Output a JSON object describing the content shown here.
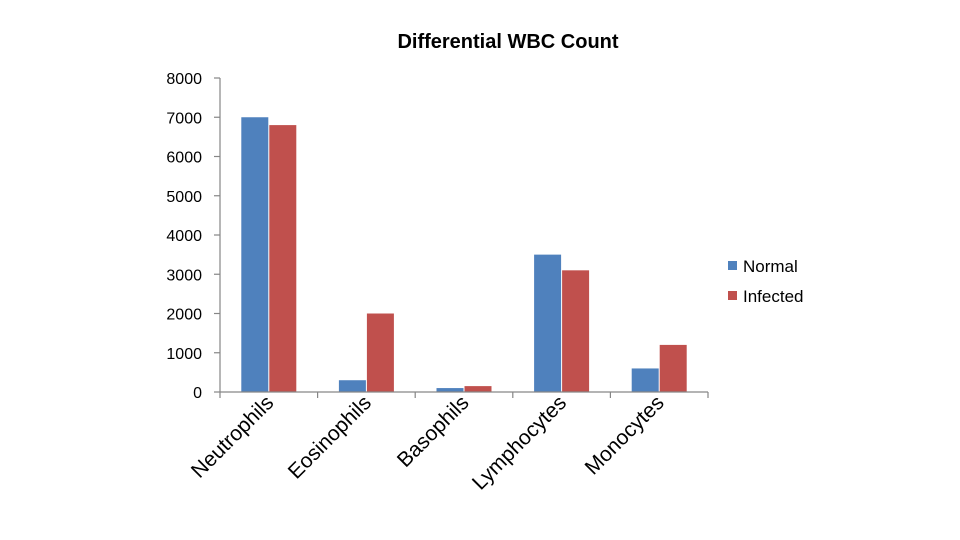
{
  "chart_data": {
    "type": "bar",
    "title": "Differential WBC Count",
    "xlabel": "",
    "ylabel": "",
    "categories": [
      "Neutrophils",
      "Eosinophils",
      "Basophils",
      "Lymphocytes",
      "Monocytes"
    ],
    "series": [
      {
        "name": "Normal",
        "color": "#4F81BD",
        "values": [
          7000,
          300,
          100,
          3500,
          600
        ]
      },
      {
        "name": "Infected",
        "color": "#C0504D",
        "values": [
          6800,
          2000,
          150,
          3100,
          1200
        ]
      }
    ],
    "ylim": [
      0,
      8000
    ],
    "yticks": [
      "0",
      "1000",
      "2000",
      "3000",
      "4000",
      "5000",
      "6000",
      "7000",
      "8000"
    ],
    "grid": false,
    "legend": "right"
  }
}
